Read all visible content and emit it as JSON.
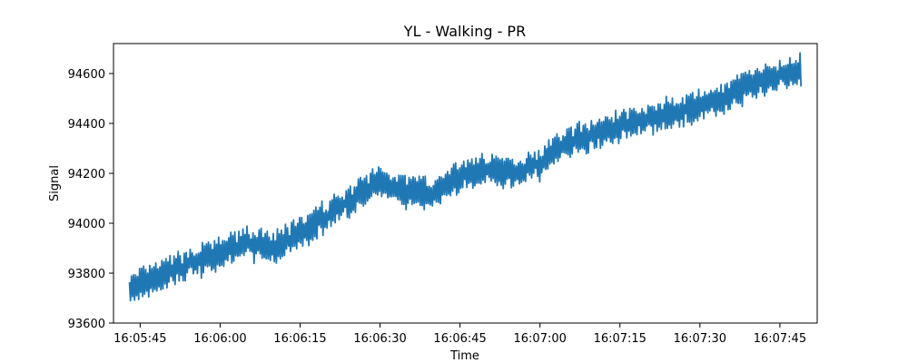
{
  "chart_data": {
    "type": "line",
    "title": "YL - Walking - PR",
    "xlabel": "Time",
    "ylabel": "Signal",
    "x_start": "16:05:43",
    "x_end": "16:07:49",
    "xlim": [
      "16:05:40",
      "16:07:52"
    ],
    "ylim": [
      93600,
      94720
    ],
    "x_ticks": [
      "16:05:45",
      "16:06:00",
      "16:06:15",
      "16:06:30",
      "16:06:45",
      "16:07:00",
      "16:07:15",
      "16:07:30",
      "16:07:45"
    ],
    "y_ticks": [
      93600,
      93800,
      94000,
      94200,
      94400,
      94600
    ],
    "grid": false,
    "series": [
      {
        "color": "#1f77b4",
        "trend": [
          {
            "t": "16:05:43",
            "v": 93730
          },
          {
            "t": "16:05:50",
            "v": 93800
          },
          {
            "t": "16:06:00",
            "v": 93880
          },
          {
            "t": "16:06:05",
            "v": 93920
          },
          {
            "t": "16:06:10",
            "v": 93900
          },
          {
            "t": "16:06:15",
            "v": 93960
          },
          {
            "t": "16:06:20",
            "v": 94030
          },
          {
            "t": "16:06:25",
            "v": 94100
          },
          {
            "t": "16:06:30",
            "v": 94170
          },
          {
            "t": "16:06:35",
            "v": 94130
          },
          {
            "t": "16:06:40",
            "v": 94120
          },
          {
            "t": "16:06:45",
            "v": 94190
          },
          {
            "t": "16:06:50",
            "v": 94220
          },
          {
            "t": "16:06:55",
            "v": 94200
          },
          {
            "t": "16:07:00",
            "v": 94240
          },
          {
            "t": "16:07:05",
            "v": 94320
          },
          {
            "t": "16:07:10",
            "v": 94360
          },
          {
            "t": "16:07:15",
            "v": 94390
          },
          {
            "t": "16:07:20",
            "v": 94420
          },
          {
            "t": "16:07:25",
            "v": 94440
          },
          {
            "t": "16:07:30",
            "v": 94470
          },
          {
            "t": "16:07:35",
            "v": 94500
          },
          {
            "t": "16:07:40",
            "v": 94560
          },
          {
            "t": "16:07:45",
            "v": 94590
          },
          {
            "t": "16:07:49",
            "v": 94620
          }
        ],
        "oscillation_amplitude": 65
      }
    ]
  }
}
